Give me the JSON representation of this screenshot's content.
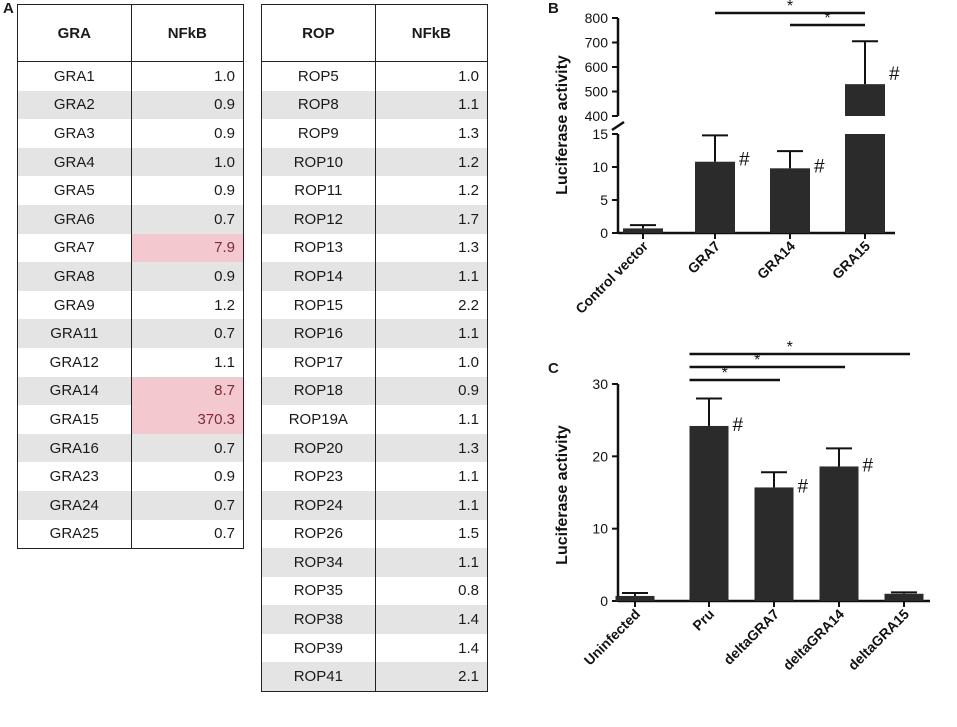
{
  "panels": {
    "a": "A",
    "b": "B",
    "c": "C"
  },
  "gra_table": {
    "headers": [
      "GRA",
      "NFkB"
    ],
    "rows": [
      {
        "name": "GRA1",
        "value": "1.0",
        "highlight": false
      },
      {
        "name": "GRA2",
        "value": "0.9",
        "highlight": false
      },
      {
        "name": "GRA3",
        "value": "0.9",
        "highlight": false
      },
      {
        "name": "GRA4",
        "value": "1.0",
        "highlight": false
      },
      {
        "name": "GRA5",
        "value": "0.9",
        "highlight": false
      },
      {
        "name": "GRA6",
        "value": "0.7",
        "highlight": false
      },
      {
        "name": "GRA7",
        "value": "7.9",
        "highlight": true
      },
      {
        "name": "GRA8",
        "value": "0.9",
        "highlight": false
      },
      {
        "name": "GRA9",
        "value": "1.2",
        "highlight": false
      },
      {
        "name": "GRA11",
        "value": "0.7",
        "highlight": false
      },
      {
        "name": "GRA12",
        "value": "1.1",
        "highlight": false
      },
      {
        "name": "GRA14",
        "value": "8.7",
        "highlight": true
      },
      {
        "name": "GRA15",
        "value": "370.3",
        "highlight": true
      },
      {
        "name": "GRA16",
        "value": "0.7",
        "highlight": false
      },
      {
        "name": "GRA23",
        "value": "0.9",
        "highlight": false
      },
      {
        "name": "GRA24",
        "value": "0.7",
        "highlight": false
      },
      {
        "name": "GRA25",
        "value": "0.7",
        "highlight": false
      }
    ]
  },
  "rop_table": {
    "headers": [
      "ROP",
      "NFkB"
    ],
    "rows": [
      {
        "name": "ROP5",
        "value": "1.0"
      },
      {
        "name": "ROP8",
        "value": "1.1"
      },
      {
        "name": "ROP9",
        "value": "1.3"
      },
      {
        "name": "ROP10",
        "value": "1.2"
      },
      {
        "name": "ROP11",
        "value": "1.2"
      },
      {
        "name": "ROP12",
        "value": "1.7"
      },
      {
        "name": "ROP13",
        "value": "1.3"
      },
      {
        "name": "ROP14",
        "value": "1.1"
      },
      {
        "name": "ROP15",
        "value": "2.2"
      },
      {
        "name": "ROP16",
        "value": "1.1"
      },
      {
        "name": "ROP17",
        "value": "1.0"
      },
      {
        "name": "ROP18",
        "value": "0.9"
      },
      {
        "name": "ROP19A",
        "value": "1.1"
      },
      {
        "name": "ROP20",
        "value": "1.3"
      },
      {
        "name": "ROP23",
        "value": "1.1"
      },
      {
        "name": "ROP24",
        "value": "1.1"
      },
      {
        "name": "ROP26",
        "value": "1.5"
      },
      {
        "name": "ROP34",
        "value": "1.1"
      },
      {
        "name": "ROP35",
        "value": "0.8"
      },
      {
        "name": "ROP38",
        "value": "1.4"
      },
      {
        "name": "ROP39",
        "value": "1.4"
      },
      {
        "name": "ROP41",
        "value": "2.1"
      }
    ]
  },
  "colors": {
    "bar": "#2b2b2b",
    "highlight": "#f3c8cf",
    "row_alt": "#e4e4e4"
  },
  "chart_data": [
    {
      "panel": "B",
      "type": "bar",
      "ylabel": "Luciferase  activity",
      "categories": [
        "Control vector",
        "GRA7",
        "GRA14",
        "GRA15"
      ],
      "values": [
        0.7,
        10.8,
        9.8,
        530
      ],
      "errors": [
        0.5,
        4.0,
        2.6,
        175
      ],
      "marks": [
        "",
        "#",
        "#",
        "#"
      ],
      "axis_break": true,
      "lower_range": [
        0,
        15
      ],
      "lower_ticks": [
        "0",
        "5",
        "10",
        "15"
      ],
      "upper_range": [
        400,
        800
      ],
      "upper_ticks": [
        "400",
        "500",
        "600",
        "700",
        "800"
      ],
      "significance": [
        {
          "from": 1,
          "to": 3,
          "label": "*"
        },
        {
          "from": 2,
          "to": 3,
          "label": "*"
        }
      ]
    },
    {
      "panel": "C",
      "type": "bar",
      "ylabel": "Luciferase  activity",
      "categories": [
        "Uninfected",
        "Pru",
        "deltaGRA7",
        "deltaGRA14",
        "deltaGRA15"
      ],
      "values": [
        0.7,
        24.2,
        15.7,
        18.6,
        1.0
      ],
      "errors": [
        0.4,
        3.8,
        2.1,
        2.5,
        0.2
      ],
      "marks": [
        "",
        "#",
        "#",
        "#",
        ""
      ],
      "ylim": [
        0,
        30
      ],
      "yticks": [
        "0",
        "10",
        "20",
        "30"
      ],
      "significance": [
        {
          "from": 1,
          "to": 4,
          "label": "*"
        },
        {
          "from": 1,
          "to": 3,
          "label": "*"
        },
        {
          "from": 1,
          "to": 2,
          "label": "*"
        }
      ]
    }
  ]
}
